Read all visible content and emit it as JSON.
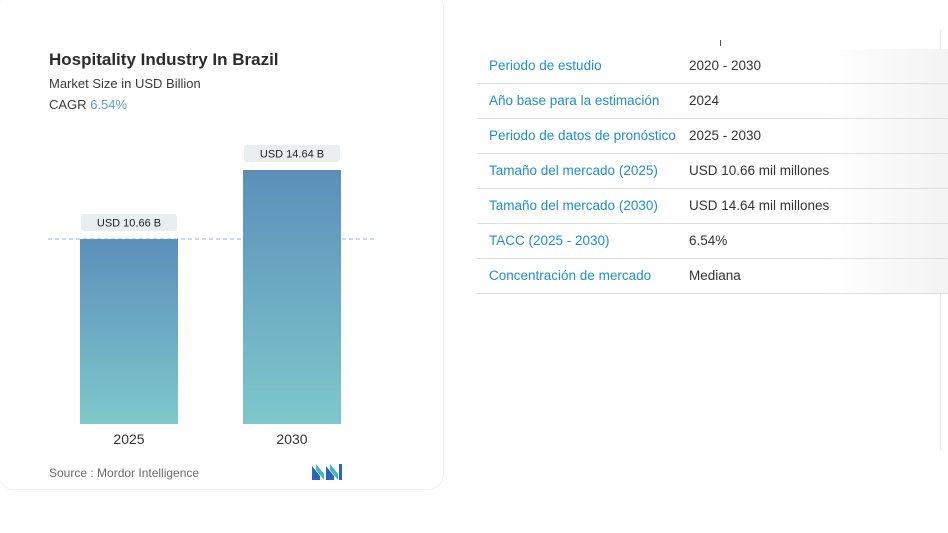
{
  "header": {
    "title": "Hospitality Industry In Brazil",
    "subtitle": "Market Size in USD Billion",
    "cagr_label": "CAGR",
    "cagr_value": "6.54%"
  },
  "chart_data": {
    "type": "bar",
    "title": "Hospitality Industry In Brazil",
    "subtitle": "Market Size in USD Billion",
    "categories": [
      "2025",
      "2030"
    ],
    "values": [
      10.66,
      14.64
    ],
    "data_labels": [
      "USD 10.66 B",
      "USD 14.64 B"
    ],
    "xlabel": "",
    "ylabel": "",
    "ylim": [
      0,
      14.64
    ],
    "grid": false,
    "legend": "none",
    "reference_line": 10.66
  },
  "colors": {
    "bar_top": "#5b8fba",
    "bar_bottom": "#7ec8cb",
    "key_text": "#1f8fc6",
    "cagr": "#5a9ec4",
    "dash_line": "#8fb6d6"
  },
  "footer": {
    "source": "Source : Mordor Intelligence",
    "logo_icon": "mordor-intelligence-logo-icon"
  },
  "table": {
    "rows": [
      {
        "key": "Periodo de estudio",
        "value": "2020 - 2030"
      },
      {
        "key": "Año base para la estimación",
        "value": "2024"
      },
      {
        "key": "Periodo de datos de pronóstico",
        "value": "2025 - 2030"
      },
      {
        "key": "Tamaño del mercado (2025)",
        "value": "USD 10.66 mil millones"
      },
      {
        "key": "Tamaño del mercado (2030)",
        "value": "USD 14.64 mil millones"
      },
      {
        "key": "TACC (2025 - 2030)",
        "value": "6.54%"
      },
      {
        "key": "Concentración de mercado",
        "value": "Mediana"
      }
    ]
  }
}
